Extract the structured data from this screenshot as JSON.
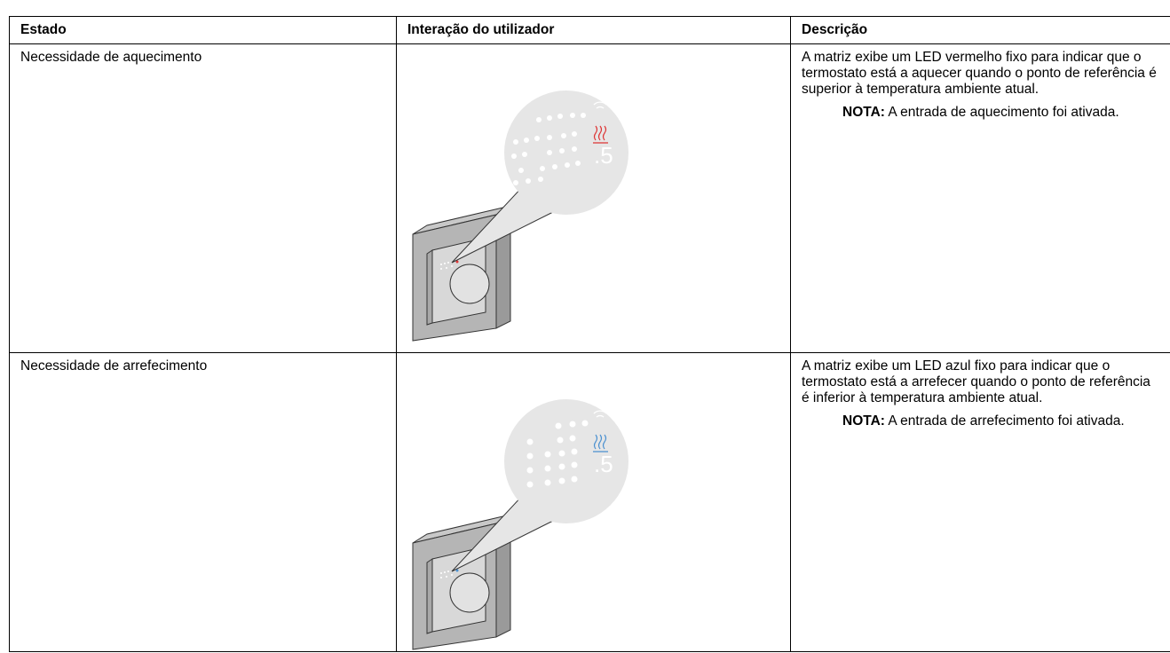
{
  "table": {
    "header": [
      "Estado",
      "Interação do utilizador",
      "Descrição"
    ],
    "rows": [
      {
        "state": "Necessidade de aquecimento",
        "display_digit": ".5",
        "description": "A matriz exibe um LED vermelho fixo para indicar que o termostato está a aquecer quando o ponto de referência é superior à temperatura ambiente atual.",
        "note_label": "NOTA:",
        "note": "A entrada de aquecimento foi ativada."
      },
      {
        "state": "Necessidade de arrefecimento",
        "display_digit": ".5",
        "description": "A matriz exibe um LED azul fixo para indicar que o termostato está a arrefecer quando o ponto de referência é inferior à temperatura ambiente atual.",
        "note_label": "NOTA:",
        "note": "A entrada de arrefecimento foi ativada."
      }
    ]
  }
}
